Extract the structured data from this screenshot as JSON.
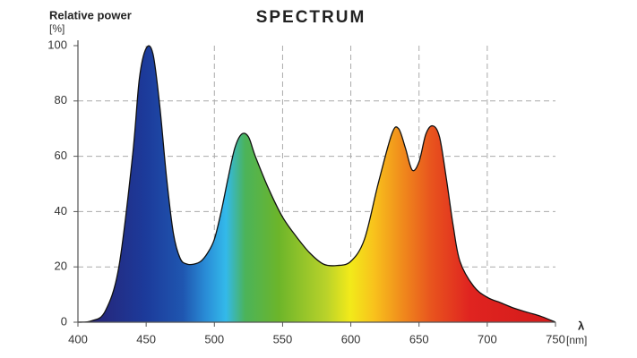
{
  "chart_data": {
    "type": "area",
    "title": "SPECTRUM",
    "y_label": "Relative power",
    "y_unit": "[%]",
    "x_label": "λ",
    "x_unit": "[nm]",
    "x": [
      400,
      410,
      420,
      430,
      440,
      445,
      450,
      455,
      460,
      465,
      470,
      475,
      480,
      485,
      490,
      495,
      500,
      505,
      510,
      515,
      520,
      525,
      530,
      540,
      550,
      560,
      570,
      580,
      590,
      600,
      610,
      620,
      630,
      635,
      640,
      645,
      650,
      655,
      660,
      665,
      670,
      675,
      680,
      690,
      700,
      710,
      720,
      730,
      740,
      750
    ],
    "values": [
      0,
      0.5,
      4,
      20,
      60,
      88,
      99,
      97,
      78,
      52,
      32,
      23,
      21,
      21,
      22,
      25,
      30,
      40,
      52,
      63,
      68,
      67,
      60,
      48,
      38,
      31,
      25,
      21,
      20.5,
      22,
      30,
      50,
      68,
      70,
      63,
      55,
      58,
      68,
      71,
      67,
      52,
      35,
      22,
      13,
      9,
      7,
      5,
      3.5,
      2,
      0
    ],
    "xlim": [
      400,
      750
    ],
    "ylim": [
      0,
      100
    ],
    "xticks": [
      400,
      450,
      500,
      550,
      600,
      650,
      700,
      750
    ],
    "yticks": [
      0,
      20,
      40,
      60,
      80,
      100
    ],
    "grid": true
  }
}
